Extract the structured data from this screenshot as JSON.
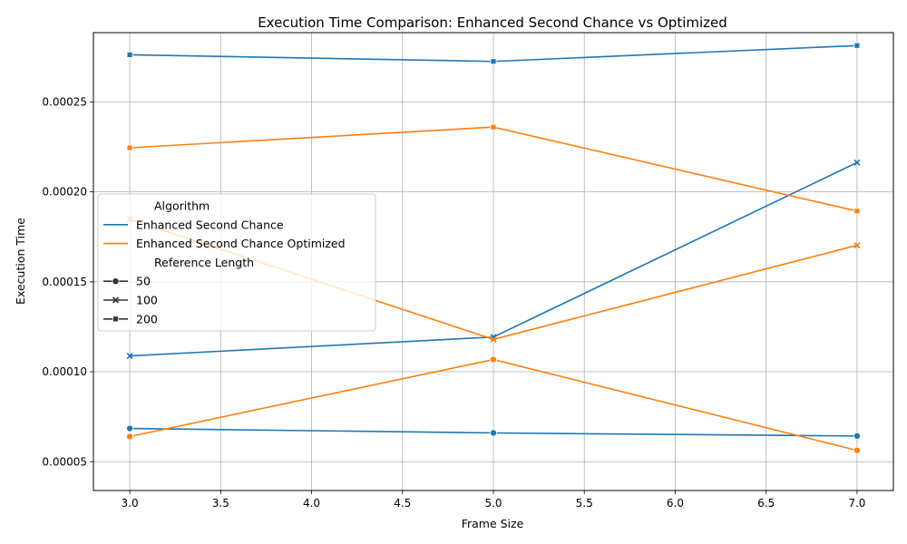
{
  "chart_data": {
    "type": "line",
    "title": "Execution Time Comparison: Enhanced Second Chance vs Optimized",
    "xlabel": "Frame Size",
    "ylabel": "Execution Time",
    "xlim": [
      2.8,
      7.2
    ],
    "ylim": [
      3.4e-05,
      0.0002885
    ],
    "x_ticks": [
      3.0,
      3.5,
      4.0,
      4.5,
      5.0,
      5.5,
      6.0,
      6.5,
      7.0
    ],
    "x_tick_labels": [
      "3.0",
      "3.5",
      "4.0",
      "4.5",
      "5.0",
      "5.5",
      "6.0",
      "6.5",
      "7.0"
    ],
    "y_ticks": [
      5e-05,
      0.0001,
      0.00015,
      0.0002,
      0.00025
    ],
    "y_tick_labels": [
      "0.00005",
      "0.00010",
      "0.00015",
      "0.00020",
      "0.00025"
    ],
    "grid": true,
    "legend": {
      "placement": "center-left",
      "hue_title": "Algorithm",
      "style_title": "Reference Length",
      "hue_entries": [
        {
          "label": "Enhanced Second Chance",
          "color": "#1f77b4"
        },
        {
          "label": "Enhanced Second Chance Optimized",
          "color": "#ff7f0e"
        }
      ],
      "style_entries": [
        {
          "label": "50",
          "marker": "circle"
        },
        {
          "label": "100",
          "marker": "x"
        },
        {
          "label": "200",
          "marker": "square"
        }
      ]
    },
    "x": [
      3,
      5,
      7
    ],
    "series": [
      {
        "algorithm": "Enhanced Second Chance",
        "reference_length": "50",
        "color": "#1f77b4",
        "marker": "circle",
        "values": [
          6.85e-05,
          6.6e-05,
          6.43e-05
        ]
      },
      {
        "algorithm": "Enhanced Second Chance",
        "reference_length": "100",
        "color": "#1f77b4",
        "marker": "x",
        "values": [
          0.0001088,
          0.0001193,
          0.0002163
        ]
      },
      {
        "algorithm": "Enhanced Second Chance",
        "reference_length": "200",
        "color": "#1f77b4",
        "marker": "square",
        "values": [
          0.0002762,
          0.0002725,
          0.0002813
        ]
      },
      {
        "algorithm": "Enhanced Second Chance Optimized",
        "reference_length": "50",
        "color": "#ff7f0e",
        "marker": "circle",
        "values": [
          6.4e-05,
          0.0001068,
          5.63e-05
        ]
      },
      {
        "algorithm": "Enhanced Second Chance Optimized",
        "reference_length": "100",
        "color": "#ff7f0e",
        "marker": "x",
        "values": [
          0.0001848,
          0.000118,
          0.0001703
        ]
      },
      {
        "algorithm": "Enhanced Second Chance Optimized",
        "reference_length": "200",
        "color": "#ff7f0e",
        "marker": "square",
        "values": [
          0.0002245,
          0.000236,
          0.0001893
        ]
      }
    ]
  }
}
